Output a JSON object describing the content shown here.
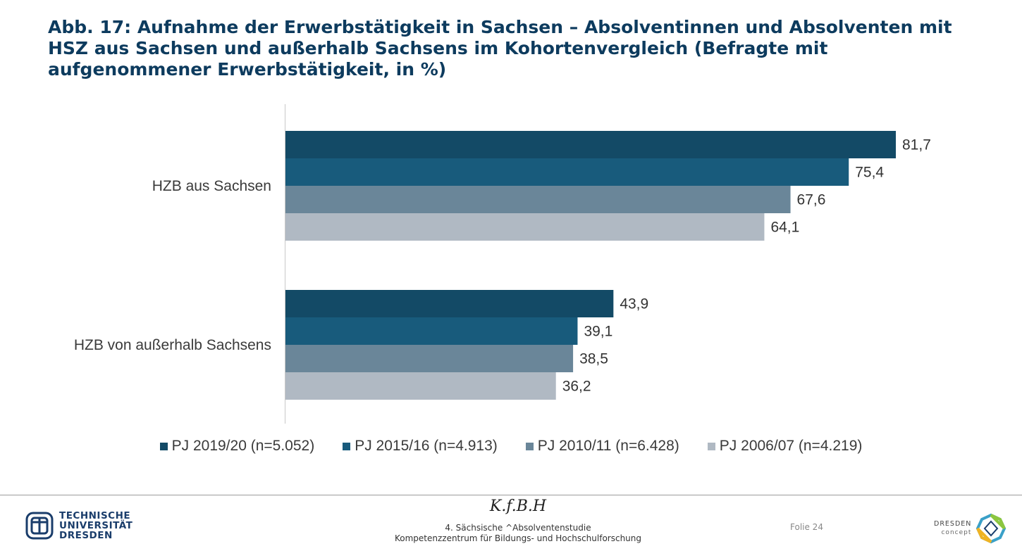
{
  "title": "Abb. 17: Aufnahme der Erwerbstätigkeit in Sachsen – Absolventinnen und Absolventen mit HSZ aus Sachsen und außerhalb Sachsens  im Kohortenvergleich (Befragte mit aufgenommener Erwerbstätigkeit, in %)",
  "chart_data": {
    "type": "bar",
    "orientation": "horizontal",
    "title": "",
    "xlabel": "",
    "ylabel": "",
    "xlim": [
      0,
      85
    ],
    "grid": false,
    "legend_position": "bottom",
    "categories": [
      "HZB aus Sachsen",
      "HZB von außerhalb Sachsens"
    ],
    "series": [
      {
        "name": "PJ 2019/20 (n=5.052)",
        "color": "#134a66",
        "values": [
          81.7,
          43.9
        ],
        "labels": [
          "81,7",
          "43,9"
        ]
      },
      {
        "name": "PJ 2015/16 (n=4.913)",
        "color": "#185b7c",
        "values": [
          75.4,
          39.1
        ],
        "labels": [
          "75,4",
          "39,1"
        ]
      },
      {
        "name": "PJ 2010/11 (n=6.428)",
        "color": "#6a8699",
        "values": [
          67.6,
          38.5
        ],
        "labels": [
          "67,6",
          "38,5"
        ]
      },
      {
        "name": "PJ 2006/07 (n=4.219)",
        "color": "#b0b9c3",
        "values": [
          64.1,
          36.2
        ],
        "labels": [
          "64,1",
          "36,2"
        ]
      }
    ]
  },
  "footer": {
    "logo_left_lines": [
      "TECHNISCHE",
      "UNIVERSITÄT",
      "DRESDEN"
    ],
    "kfbh": "K.f.B.H",
    "center_line1": "4. Sächsische ^Absolventenstudie",
    "center_line2": "Kompetenzzentrum für Bildungs- und Hochschulforschung",
    "page": "Folie 24",
    "logo_right_line1": "DRESDEN",
    "logo_right_line2": "concept"
  }
}
